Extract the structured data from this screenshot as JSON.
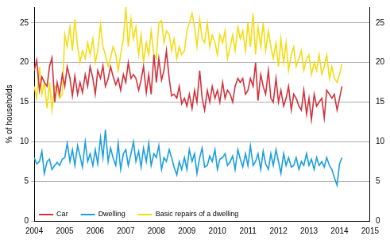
{
  "chart_data": {
    "type": "line",
    "y_label": "% of households",
    "x": [
      2004.0,
      2004.08,
      2004.17,
      2004.25,
      2004.33,
      2004.42,
      2004.5,
      2004.58,
      2004.67,
      2004.75,
      2004.83,
      2004.92,
      2005.0,
      2005.08,
      2005.17,
      2005.25,
      2005.33,
      2005.42,
      2005.5,
      2005.58,
      2005.67,
      2005.75,
      2005.83,
      2005.92,
      2006.0,
      2006.08,
      2006.17,
      2006.25,
      2006.33,
      2006.42,
      2006.5,
      2006.58,
      2006.67,
      2006.75,
      2006.83,
      2006.92,
      2007.0,
      2007.08,
      2007.17,
      2007.25,
      2007.33,
      2007.42,
      2007.5,
      2007.58,
      2007.67,
      2007.75,
      2007.83,
      2007.92,
      2008.0,
      2008.08,
      2008.17,
      2008.25,
      2008.33,
      2008.42,
      2008.5,
      2008.58,
      2008.67,
      2008.75,
      2008.83,
      2008.92,
      2009.0,
      2009.08,
      2009.17,
      2009.25,
      2009.33,
      2009.42,
      2009.5,
      2009.58,
      2009.67,
      2009.75,
      2009.83,
      2009.92,
      2010.0,
      2010.08,
      2010.17,
      2010.25,
      2010.33,
      2010.42,
      2010.5,
      2010.58,
      2010.67,
      2010.75,
      2010.83,
      2010.92,
      2011.0,
      2011.08,
      2011.17,
      2011.25,
      2011.33,
      2011.42,
      2011.5,
      2011.58,
      2011.67,
      2011.75,
      2011.83,
      2011.92,
      2012.0,
      2012.08,
      2012.17,
      2012.25,
      2012.33,
      2012.42,
      2012.5,
      2012.58,
      2012.67,
      2012.75,
      2012.83,
      2012.92,
      2013.0,
      2013.08,
      2013.17,
      2013.25,
      2013.33,
      2013.42,
      2013.5,
      2013.58,
      2013.67,
      2013.75,
      2013.83,
      2013.92,
      2014.0,
      2014.08
    ],
    "xlim": [
      2004,
      2015
    ],
    "xticks": [
      2004,
      2005,
      2006,
      2007,
      2008,
      2009,
      2010,
      2011,
      2012,
      2013,
      2014,
      2015
    ],
    "ylim": [
      0,
      27
    ],
    "yticks": [
      0,
      5,
      10,
      15,
      20,
      25
    ],
    "y2lim": [
      0,
      27
    ],
    "y2ticks": [
      0,
      5,
      10,
      15,
      20,
      25
    ],
    "grid": true,
    "legend": "bottom-left",
    "series": [
      {
        "name": "Car",
        "color": "#d2323c",
        "values": [
          19.0,
          20.3,
          16.5,
          18.2,
          17.5,
          17.0,
          19.5,
          20.6,
          15.0,
          17.5,
          16.0,
          18.5,
          17.0,
          19.5,
          18.0,
          15.8,
          18.3,
          16.0,
          17.5,
          16.2,
          18.5,
          17.0,
          19.5,
          18.0,
          16.0,
          19.0,
          18.0,
          19.6,
          17.0,
          18.0,
          19.5,
          18.3,
          17.2,
          18.0,
          16.5,
          18.5,
          17.5,
          20.0,
          18.0,
          18.5,
          18.0,
          16.5,
          17.8,
          19.5,
          16.2,
          18.5,
          16.0,
          21.0,
          17.5,
          20.5,
          17.8,
          19.0,
          21.5,
          18.0,
          15.8,
          16.0,
          15.5,
          17.0,
          14.8,
          15.5,
          14.5,
          16.0,
          14.2,
          16.5,
          15.0,
          19.0,
          15.5,
          14.0,
          16.5,
          15.0,
          17.0,
          15.5,
          16.5,
          15.0,
          17.5,
          15.5,
          16.5,
          16.0,
          15.0,
          17.0,
          18.0,
          17.5,
          18.0,
          16.0,
          16.5,
          18.0,
          17.0,
          20.0,
          15.2,
          18.5,
          17.0,
          16.0,
          19.0,
          15.5,
          15.0,
          18.0,
          15.0,
          16.5,
          14.5,
          15.5,
          17.0,
          14.0,
          16.0,
          15.5,
          14.5,
          14.0,
          16.5,
          13.5,
          15.5,
          12.8,
          16.0,
          14.5,
          15.0,
          15.5,
          13.0,
          16.5,
          16.0,
          15.5,
          16.0,
          14.0,
          15.5,
          17.0
        ]
      },
      {
        "name": "Dwelling",
        "color": "#1a9ee0",
        "values": [
          8.0,
          7.2,
          7.5,
          8.8,
          6.0,
          7.5,
          7.8,
          6.5,
          7.0,
          7.4,
          7.0,
          7.8,
          8.0,
          9.8,
          7.5,
          9.0,
          7.0,
          9.5,
          8.2,
          6.8,
          10.0,
          7.5,
          8.5,
          7.0,
          9.0,
          7.2,
          10.5,
          8.0,
          11.5,
          7.5,
          9.2,
          8.0,
          7.0,
          9.8,
          6.5,
          8.5,
          9.0,
          7.0,
          8.5,
          10.0,
          7.5,
          8.8,
          6.8,
          9.2,
          7.5,
          9.8,
          7.0,
          8.5,
          8.0,
          9.5,
          6.5,
          8.0,
          7.5,
          9.0,
          8.0,
          6.8,
          5.8,
          7.5,
          6.5,
          8.0,
          6.5,
          9.0,
          7.5,
          8.5,
          6.0,
          8.0,
          9.2,
          6.8,
          7.0,
          8.2,
          7.5,
          9.0,
          6.5,
          7.8,
          8.0,
          8.5,
          7.0,
          7.5,
          8.2,
          6.5,
          9.0,
          7.8,
          6.8,
          8.5,
          7.0,
          9.5,
          7.0,
          7.5,
          8.5,
          6.5,
          8.8,
          7.2,
          6.5,
          8.5,
          7.0,
          9.0,
          7.5,
          6.0,
          8.5,
          7.0,
          8.0,
          6.8,
          7.0,
          8.0,
          6.5,
          7.5,
          7.0,
          8.5,
          7.0,
          7.8,
          6.5,
          8.0,
          7.0,
          7.5,
          6.8,
          8.0,
          7.0,
          6.5,
          5.5,
          4.5,
          7.2,
          8.0
        ]
      },
      {
        "name": "Basic repairs of a dwelling",
        "color": "#f5dc14",
        "values": [
          17.0,
          15.5,
          19.5,
          16.0,
          17.5,
          14.2,
          17.5,
          14.0,
          17.0,
          16.5,
          15.5,
          16.0,
          23.5,
          22.0,
          24.5,
          21.5,
          25.5,
          22.0,
          20.0,
          21.5,
          20.5,
          22.5,
          21.0,
          23.0,
          20.0,
          21.5,
          24.8,
          22.0,
          21.0,
          19.5,
          20.5,
          22.0,
          21.0,
          19.0,
          21.0,
          23.0,
          27.0,
          22.0,
          25.5,
          23.0,
          24.5,
          21.0,
          23.5,
          20.0,
          22.5,
          21.0,
          24.0,
          21.0,
          20.5,
          25.0,
          25.3,
          22.5,
          24.0,
          23.5,
          21.5,
          23.0,
          20.5,
          22.0,
          21.0,
          21.5,
          24.0,
          25.0,
          26.2,
          24.5,
          22.0,
          25.5,
          23.0,
          22.5,
          25.0,
          22.0,
          23.5,
          22.5,
          21.0,
          23.5,
          22.5,
          24.0,
          20.5,
          22.0,
          23.5,
          21.5,
          24.5,
          23.0,
          24.0,
          21.5,
          25.0,
          22.0,
          26.2,
          21.0,
          24.5,
          22.0,
          25.0,
          21.5,
          24.0,
          22.0,
          20.5,
          22.5,
          19.5,
          23.0,
          20.0,
          22.5,
          19.0,
          21.0,
          22.0,
          19.5,
          20.5,
          21.5,
          19.0,
          20.5,
          21.0,
          18.5,
          20.0,
          19.0,
          21.0,
          18.5,
          19.5,
          21.0,
          18.0,
          19.5,
          18.0,
          17.5,
          18.5,
          19.8
        ]
      }
    ]
  }
}
